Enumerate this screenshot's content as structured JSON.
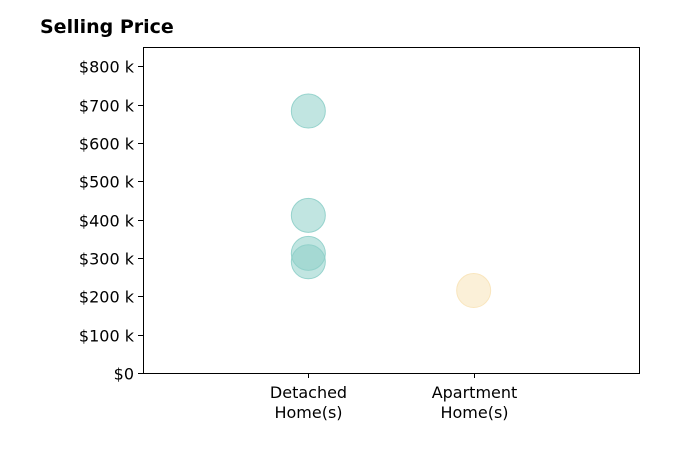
{
  "chart_data": {
    "type": "scatter",
    "title": "Selling Price",
    "xlabel": "",
    "ylabel": "",
    "categories": [
      [
        "Detached",
        "Home(s)"
      ],
      [
        "Apartment",
        "Home(s)"
      ]
    ],
    "xlim": [
      0,
      3
    ],
    "ylim": [
      0,
      850000
    ],
    "y_ticks": [
      0,
      100000,
      200000,
      300000,
      400000,
      500000,
      600000,
      700000,
      800000
    ],
    "y_tick_labels": [
      "$0",
      "$100 k",
      "$200 k",
      "$300 k",
      "$400 k",
      "$500 k",
      "$600 k",
      "$700 k",
      "$800 k"
    ],
    "grid": false,
    "legend": "none",
    "series": [
      {
        "category_index": 0,
        "color": "#8ecfc9",
        "values": [
          683000,
          411000,
          312000,
          290000
        ]
      },
      {
        "category_index": 1,
        "color": "#f8e3b8",
        "values": [
          215000
        ]
      }
    ]
  }
}
